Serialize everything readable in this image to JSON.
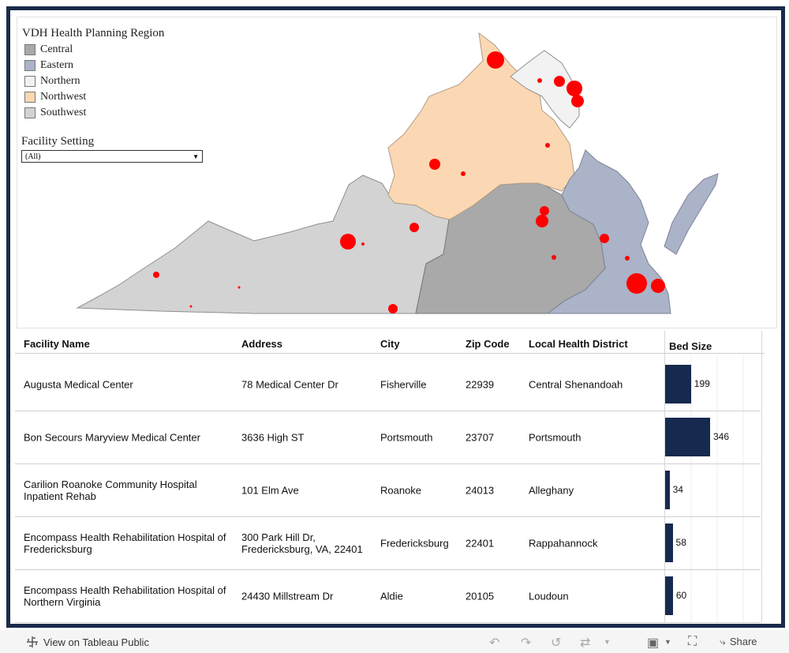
{
  "legend": {
    "title": "VDH Health Planning Region",
    "items": [
      {
        "label": "Central",
        "color": "#a9a9a9"
      },
      {
        "label": "Eastern",
        "color": "#aab3c8"
      },
      {
        "label": "Northern",
        "color": "#f2f2f2"
      },
      {
        "label": "Northwest",
        "color": "#fbd8b3"
      },
      {
        "label": "Southwest",
        "color": "#d3d3d3"
      }
    ]
  },
  "filter": {
    "title": "Facility Setting",
    "value": "(All)"
  },
  "table": {
    "headers": {
      "name": "Facility Name",
      "address": "Address",
      "city": "City",
      "zip": "Zip Code",
      "district": "Local Health District",
      "beds": "Bed Size"
    },
    "rows": [
      {
        "name": "Augusta Medical Center",
        "address": "78 Medical Center Dr",
        "city": "Fisherville",
        "zip": "22939",
        "district": "Central Shenandoah",
        "beds": 199,
        "beds_label": "199"
      },
      {
        "name": "Bon Secours Maryview Medical Center",
        "address": "3636 High ST",
        "city": "Portsmouth",
        "zip": "23707",
        "district": "Portsmouth",
        "beds": 346,
        "beds_label": "346"
      },
      {
        "name": "Carilion Roanoke Community Hospital Inpatient Rehab",
        "address": "101 Elm Ave",
        "city": "Roanoke",
        "zip": "24013",
        "district": "Alleghany",
        "beds": 34,
        "beds_label": "34"
      },
      {
        "name": "Encompass Health Rehabilitation Hospital of Fredericksburg",
        "address": "300 Park Hill Dr, Fredericksburg, VA, 22401",
        "city": "Fredericksburg",
        "zip": "22401",
        "district": "Rappahannock",
        "beds": 58,
        "beds_label": "58"
      },
      {
        "name": "Encompass Health Rehabilitation Hospital of Northern Virginia",
        "address": "24430 Millstream Dr",
        "city": "Aldie",
        "zip": "20105",
        "district": "Loudoun",
        "beds": 60,
        "beds_label": "60"
      }
    ]
  },
  "toolbar": {
    "view_label": "View on Tableau Public",
    "share_label": "Share"
  },
  "colors": {
    "accent": "#162a4f",
    "marker": "#ff0000",
    "frame": "#1a2b4a"
  }
}
